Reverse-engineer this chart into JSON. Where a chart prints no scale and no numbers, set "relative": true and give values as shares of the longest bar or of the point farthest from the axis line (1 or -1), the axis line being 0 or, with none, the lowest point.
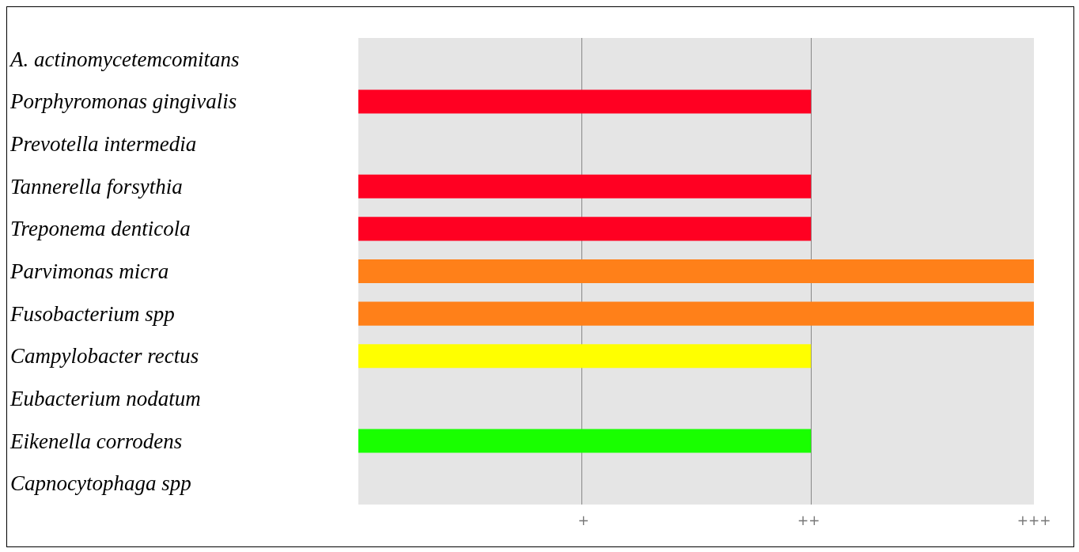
{
  "chart_data": {
    "type": "bar",
    "orientation": "horizontal",
    "relative": true,
    "categories": [
      "A. actinomycetemcomitans",
      "Porphyromonas gingivalis",
      "Prevotella intermedia",
      "Tannerella forsythia",
      "Treponema denticola",
      "Parvimonas micra",
      "Fusobacterium spp",
      "Campylobacter rectus",
      "Eubacterium nodatum",
      "Eikenella corrodens",
      "Capnocytophaga spp"
    ],
    "values": [
      0,
      0.67,
      0,
      0.67,
      0.67,
      1,
      1,
      0.67,
      0,
      0.67,
      0
    ],
    "colors": [
      "#ff0022",
      "#ff0022",
      "#ff0022",
      "#ff0022",
      "#ff0022",
      "#ff8019",
      "#ff8019",
      "#ffff00",
      "#19ff00",
      "#19ff00",
      "#19ff00"
    ],
    "annotations": [
      "+",
      "++",
      "+++"
    ],
    "ref_lines": [
      {
        "axis": "x",
        "value": 0.33,
        "color": "#888888"
      },
      {
        "axis": "x",
        "value": 0.67,
        "color": "#888888"
      }
    ],
    "legend": false
  }
}
